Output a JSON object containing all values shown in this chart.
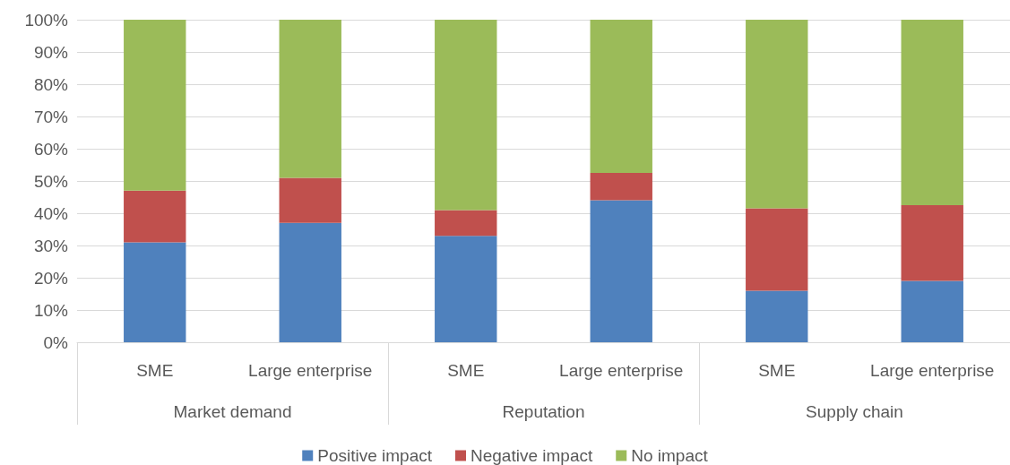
{
  "chart_data": {
    "type": "bar",
    "stacked": true,
    "categories": [
      "SME",
      "Large enterprise",
      "SME",
      "Large enterprise",
      "SME",
      "Large enterprise"
    ],
    "series": [
      {
        "name": "Positive impact",
        "color": "#4f81bd",
        "values": [
          31,
          37,
          33,
          44,
          16,
          19
        ]
      },
      {
        "name": "Negative impact",
        "color": "#c0504d",
        "values": [
          16,
          14,
          8,
          8.5,
          25.5,
          23.5
        ]
      },
      {
        "name": "No impact",
        "color": "#9bbb59",
        "values": [
          53,
          49,
          59,
          47.5,
          58.5,
          57.5
        ]
      }
    ],
    "annotations": [
      "Market demand",
      "Reputation",
      "Supply chain"
    ],
    "ylim": [
      0,
      100
    ],
    "yticks": [
      {
        "value": 0,
        "label": "0%"
      },
      {
        "value": 10,
        "label": "10%"
      },
      {
        "value": 20,
        "label": "20%"
      },
      {
        "value": 30,
        "label": "30%"
      },
      {
        "value": 40,
        "label": "40%"
      },
      {
        "value": 50,
        "label": "50%"
      },
      {
        "value": 60,
        "label": "60%"
      },
      {
        "value": 70,
        "label": "70%"
      },
      {
        "value": 80,
        "label": "80%"
      },
      {
        "value": 90,
        "label": "90%"
      },
      {
        "value": 100,
        "label": "100%"
      }
    ],
    "grid": "y",
    "legend": "bottom"
  }
}
